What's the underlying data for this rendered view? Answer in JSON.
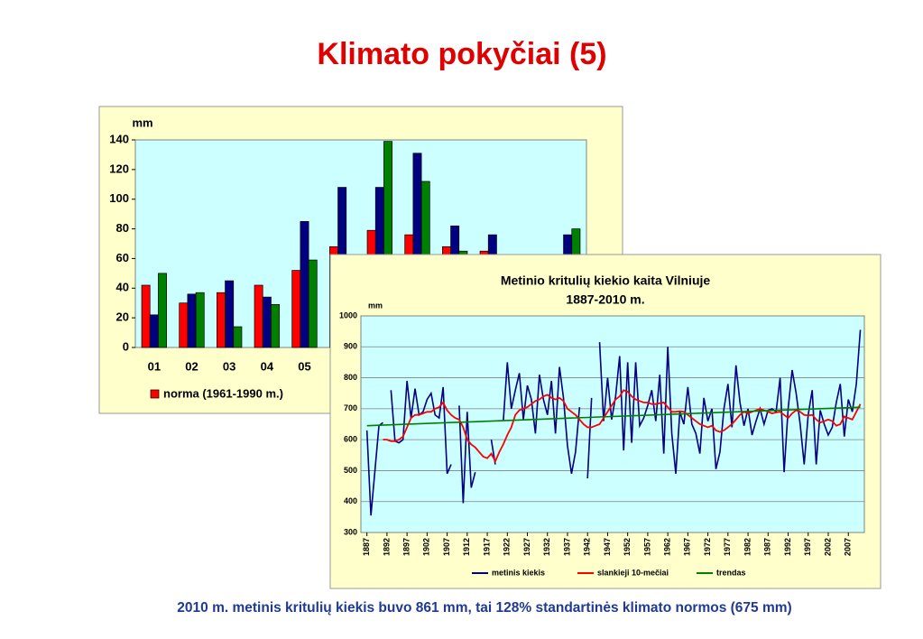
{
  "page_title": "Klimato pokyčiai (5)",
  "caption": "2010 m. metinis kritulių kiekis buvo 861 mm, tai 128% standartinės klimato normos (675 mm)",
  "chart_data": [
    {
      "type": "bar",
      "ylabel": "mm",
      "categories": [
        "01",
        "02",
        "03",
        "04",
        "05",
        null,
        null,
        null,
        null,
        null,
        null,
        null
      ],
      "series": [
        {
          "name": "norma (1961-1990 m.)",
          "color": "#ff0000",
          "values": [
            42,
            30,
            37,
            42,
            52,
            68,
            79,
            76,
            68,
            65,
            null,
            null
          ]
        },
        {
          "color": "#000080",
          "values": [
            22,
            36,
            45,
            34,
            85,
            108,
            108,
            131,
            82,
            76,
            null,
            76
          ]
        },
        {
          "color": "#008000",
          "values": [
            50,
            37,
            14,
            29,
            59,
            null,
            139,
            112,
            65,
            null,
            null,
            80
          ]
        }
      ],
      "ylim": [
        0,
        140
      ],
      "yticks": [
        0,
        20,
        40,
        60,
        80,
        100,
        120,
        140
      ],
      "grid": false
    },
    {
      "type": "line",
      "title": "Metinio kritulių kiekio kaita Vilniuje",
      "subtitle": "1887-2010 m.",
      "ylabel": "mm",
      "x": [
        1887,
        1888,
        1889,
        1890,
        1891,
        1892,
        1893,
        1894,
        1895,
        1896,
        1897,
        1898,
        1899,
        1900,
        1901,
        1902,
        1903,
        1904,
        1905,
        1906,
        1907,
        1908,
        1909,
        1910,
        1911,
        1912,
        1913,
        1914,
        1915,
        1916,
        1917,
        1918,
        1919,
        1920,
        1921,
        1922,
        1923,
        1924,
        1925,
        1926,
        1927,
        1928,
        1929,
        1930,
        1931,
        1932,
        1933,
        1934,
        1935,
        1936,
        1937,
        1938,
        1939,
        1940,
        1941,
        1942,
        1943,
        1944,
        1945,
        1946,
        1947,
        1948,
        1949,
        1950,
        1951,
        1952,
        1953,
        1954,
        1955,
        1956,
        1957,
        1958,
        1959,
        1960,
        1961,
        1962,
        1963,
        1964,
        1965,
        1966,
        1967,
        1968,
        1969,
        1970,
        1971,
        1972,
        1973,
        1974,
        1975,
        1976,
        1977,
        1978,
        1979,
        1980,
        1981,
        1982,
        1983,
        1984,
        1985,
        1986,
        1987,
        1988,
        1989,
        1990,
        1991,
        1992,
        1993,
        1994,
        1995,
        1996,
        1997,
        1998,
        1999,
        2000,
        2001,
        2002,
        2003,
        2004,
        2005,
        2006,
        2007,
        2008,
        2009,
        2010
      ],
      "series": [
        {
          "name": "metinis kiekis",
          "color": "#000080",
          "values": [
            630,
            355,
            500,
            645,
            655,
            null,
            760,
            595,
            590,
            600,
            790,
            670,
            765,
            680,
            690,
            730,
            750,
            680,
            670,
            770,
            490,
            520,
            null,
            710,
            395,
            690,
            445,
            495,
            null,
            null,
            null,
            600,
            520,
            null,
            660,
            850,
            700,
            760,
            815,
            665,
            775,
            730,
            620,
            810,
            730,
            680,
            790,
            620,
            835,
            735,
            580,
            490,
            560,
            705,
            null,
            475,
            735,
            null,
            915,
            660,
            800,
            665,
            740,
            870,
            565,
            850,
            590,
            850,
            645,
            670,
            710,
            760,
            660,
            810,
            555,
            900,
            620,
            490,
            690,
            650,
            770,
            650,
            620,
            555,
            735,
            660,
            700,
            505,
            560,
            700,
            780,
            640,
            840,
            720,
            645,
            700,
            615,
            660,
            700,
            650,
            695,
            700,
            690,
            800,
            495,
            700,
            825,
            750,
            650,
            520,
            680,
            760,
            520,
            695,
            650,
            615,
            640,
            720,
            780,
            610,
            730,
            690,
            780,
            955
          ]
        },
        {
          "name": "slankieji 10-mečiai",
          "color": "#ff0000",
          "values": [
            null,
            null,
            null,
            null,
            600,
            600,
            595,
            595,
            600,
            610,
            640,
            670,
            680,
            680,
            685,
            690,
            690,
            700,
            705,
            720,
            695,
            680,
            670,
            665,
            640,
            600,
            585,
            575,
            560,
            545,
            540,
            555,
            530,
            560,
            585,
            615,
            640,
            680,
            695,
            700,
            705,
            715,
            725,
            730,
            740,
            745,
            735,
            730,
            735,
            725,
            700,
            690,
            680,
            665,
            650,
            640,
            640,
            645,
            650,
            670,
            690,
            710,
            730,
            740,
            760,
            755,
            740,
            730,
            725,
            720,
            720,
            715,
            715,
            718,
            720,
            705,
            690,
            690,
            692,
            690,
            680,
            670,
            660,
            650,
            645,
            640,
            645,
            630,
            625,
            630,
            640,
            650,
            665,
            680,
            690,
            685,
            690,
            695,
            700,
            695,
            690,
            685,
            688,
            690,
            680,
            670,
            685,
            695,
            690,
            680,
            678,
            680,
            665,
            655,
            660,
            665,
            660,
            645,
            650,
            675,
            670,
            665,
            690,
            715
          ]
        },
        {
          "name": "trendas",
          "color": "#008000",
          "x": [
            1887,
            2010
          ],
          "values": [
            645,
            705
          ]
        }
      ],
      "xlim": [
        1885.5,
        2011
      ],
      "xticks": [
        1887,
        1892,
        1897,
        1902,
        1907,
        1912,
        1917,
        1922,
        1927,
        1932,
        1937,
        1942,
        1947,
        1952,
        1957,
        1962,
        1967,
        1972,
        1977,
        1982,
        1987,
        1992,
        1997,
        2002,
        2007
      ],
      "ylim": [
        300,
        1000
      ],
      "yticks": [
        300,
        400,
        500,
        600,
        700,
        800,
        900,
        1000
      ],
      "grid": true
    }
  ]
}
